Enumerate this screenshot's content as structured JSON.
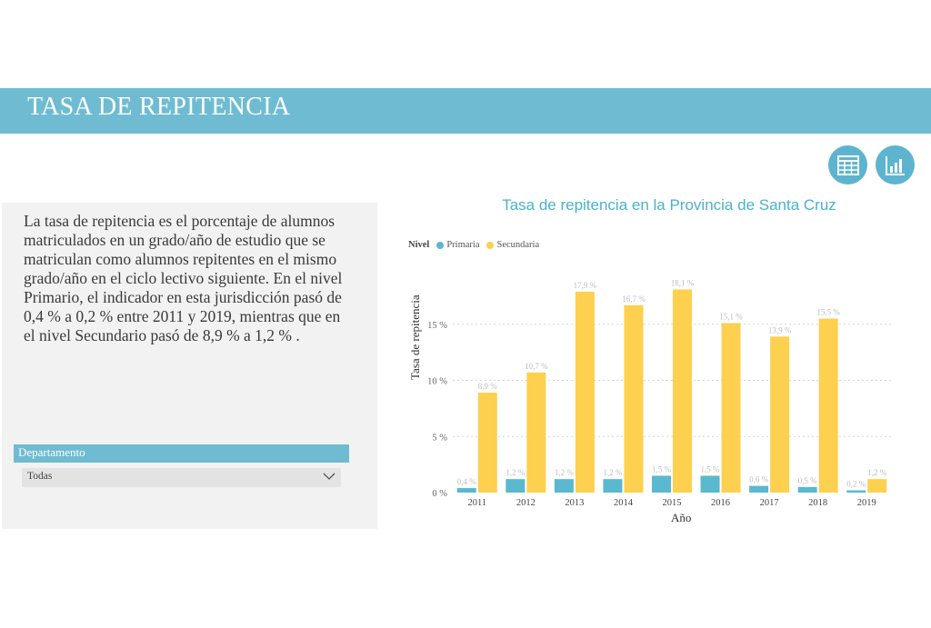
{
  "header": {
    "title": "TASA DE REPITENCIA"
  },
  "toolbar": {
    "table_icon": "table-icon",
    "chart_icon": "bar-chart-icon"
  },
  "description": "La tasa de repitencia es el porcentaje de alumnos matriculados en un grado/año de estudio que se matriculan como alumnos repitentes en el mismo grado/año en el ciclo lectivo siguiente. En el nivel Primario, el indicador en esta jurisdicción pasó de 0,4 %  a 0,2 %  entre 2011 y 2019, mientras que en el nivel Secundario pasó de 8,9 % a 1,2 % .",
  "filter": {
    "label": "Departamento",
    "value": "Todas"
  },
  "colors": {
    "header": "#6fbcd2",
    "primaria": "#5ab8cf",
    "secundaria": "#fdd050",
    "title": "#4ab1cd"
  },
  "chart_data": {
    "type": "bar",
    "title": "Tasa de repitencia en la Provincia de Santa Cruz",
    "legend_title": "Nivel",
    "xlabel": "Año",
    "ylabel": "Tasa de repitencia",
    "categories": [
      "2011",
      "2012",
      "2013",
      "2014",
      "2015",
      "2016",
      "2017",
      "2018",
      "2019"
    ],
    "ylim": [
      0,
      20
    ],
    "yticks": [
      0,
      5,
      10,
      15
    ],
    "ytick_labels": [
      "0 %",
      "5 %",
      "10 %",
      "15 %"
    ],
    "grid": true,
    "series": [
      {
        "name": "Primaria",
        "color": "#5ab8cf",
        "values": [
          0.4,
          1.2,
          1.2,
          1.2,
          1.5,
          1.5,
          0.6,
          0.5,
          0.2
        ],
        "labels": [
          "0,4 %",
          "1,2 %",
          "1,2 %",
          "1,2 %",
          "1,5 %",
          "1,5 %",
          "0,6 %",
          "0,5 %",
          "0,2 %"
        ]
      },
      {
        "name": "Secundaria",
        "color": "#fdd050",
        "values": [
          8.9,
          10.7,
          17.9,
          16.7,
          18.1,
          15.1,
          13.9,
          15.5,
          1.2
        ],
        "labels": [
          "8,9 %",
          "10,7 %",
          "17,9 %",
          "16,7 %",
          "18,1 %",
          "15,1 %",
          "13,9 %",
          "15,5 %",
          "1,2 %"
        ]
      }
    ]
  }
}
